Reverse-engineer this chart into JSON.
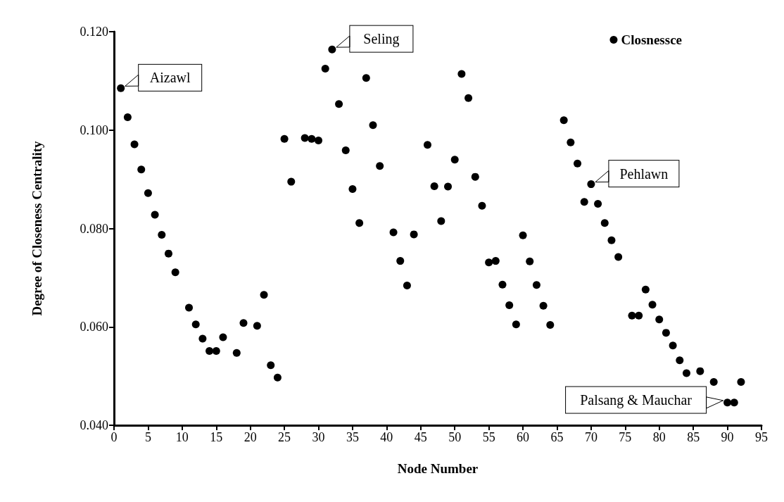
{
  "chart_data": {
    "type": "scatter",
    "xlabel": "Node Number",
    "ylabel": "Degree of Closeness Centrality",
    "xlim": [
      0,
      95
    ],
    "xticks": [
      0,
      5,
      10,
      15,
      20,
      25,
      30,
      35,
      40,
      45,
      50,
      55,
      60,
      65,
      70,
      75,
      80,
      85,
      90,
      95
    ],
    "ylim": [
      0.04,
      0.12
    ],
    "yticks": [
      {
        "value": 0.04,
        "label": "0.040"
      },
      {
        "value": 0.06,
        "label": "0.060"
      },
      {
        "value": 0.08,
        "label": "0.080"
      },
      {
        "value": 0.1,
        "label": "0.100"
      },
      {
        "value": 0.12,
        "label": "0.120"
      }
    ],
    "grid": false,
    "legend": "top right",
    "marker": "circle",
    "series": [
      {
        "name": "Closnessce",
        "color": "#000000",
        "x": [
          1,
          2,
          3,
          4,
          5,
          6,
          7,
          8,
          9,
          11,
          12,
          13,
          14,
          15,
          16,
          18,
          19,
          21,
          22,
          23,
          24,
          25,
          26,
          28,
          29,
          30,
          31,
          32,
          33,
          34,
          35,
          36,
          37,
          38,
          39,
          41,
          42,
          43,
          44,
          46,
          47,
          48,
          49,
          50,
          51,
          52,
          53,
          54,
          55,
          56,
          57,
          58,
          59,
          60,
          61,
          62,
          63,
          64,
          66,
          67,
          68,
          69,
          70,
          71,
          72,
          73,
          74,
          76,
          77,
          78,
          79,
          80,
          81,
          82,
          83,
          84,
          86,
          88,
          90,
          91,
          92
        ],
        "values": [
          0.1085,
          0.1026,
          0.0971,
          0.092,
          0.0872,
          0.0828,
          0.0787,
          0.0749,
          0.0711,
          0.0639,
          0.0605,
          0.0576,
          0.0551,
          0.0551,
          0.0579,
          0.0547,
          0.0608,
          0.0602,
          0.0665,
          0.0522,
          0.0497,
          0.0982,
          0.0895,
          0.0984,
          0.0982,
          0.0979,
          0.1125,
          0.1164,
          0.1053,
          0.0959,
          0.088,
          0.0811,
          0.1106,
          0.101,
          0.0927,
          0.0792,
          0.0734,
          0.0684,
          0.0788,
          0.097,
          0.0886,
          0.0815,
          0.0885,
          0.094,
          0.1114,
          0.1065,
          0.0905,
          0.0846,
          0.0731,
          0.0734,
          0.0686,
          0.0644,
          0.0605,
          0.0786,
          0.0733,
          0.0685,
          0.0643,
          0.0604,
          0.102,
          0.0975,
          0.0932,
          0.0854,
          0.089,
          0.085,
          0.0811,
          0.0776,
          0.0742,
          0.0623,
          0.0623,
          0.0676,
          0.0645,
          0.0615,
          0.0588,
          0.0562,
          0.0532,
          0.0506,
          0.051,
          0.0488,
          0.0446,
          0.0446,
          0.0488
        ]
      }
    ],
    "annotations": [
      {
        "text": "Aizawl",
        "x": 1,
        "y": 0.1085
      },
      {
        "text": "Seling",
        "x": 32,
        "y": 0.1164
      },
      {
        "text": "Pehlawn",
        "x": 70,
        "y": 0.089
      },
      {
        "text": "Palsang & Mauchar",
        "x": 90,
        "y": 0.0446
      }
    ]
  }
}
